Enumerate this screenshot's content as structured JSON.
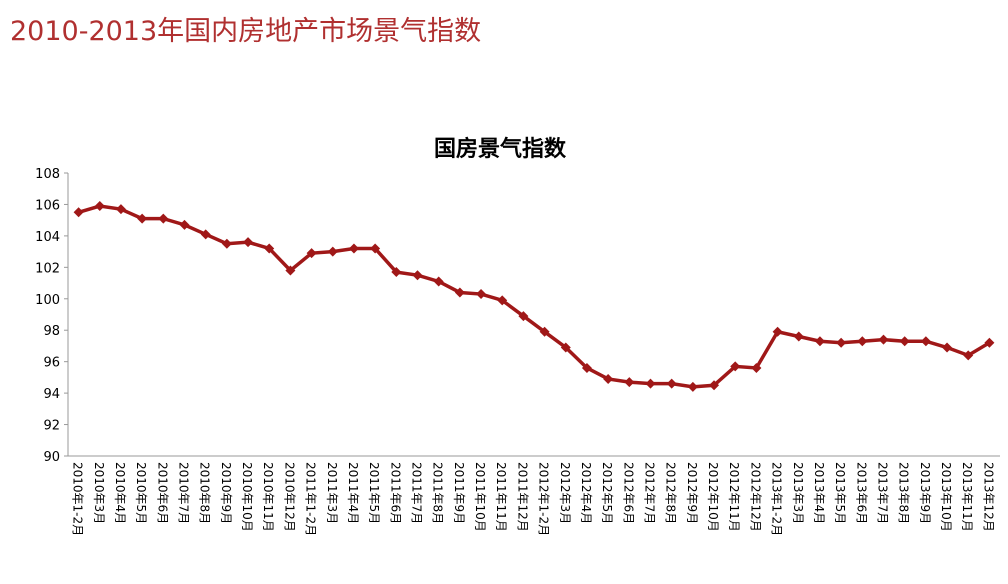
{
  "header": {
    "title": "2010-2013年国内房地产市场景气指数"
  },
  "chart_data": {
    "type": "line",
    "title": "国房景气指数",
    "categories": [
      "2010年1-2月",
      "2010年3月",
      "2010年4月",
      "2010年5月",
      "2010年6月",
      "2010年7月",
      "2010年8月",
      "2010年9月",
      "2010年10月",
      "2010年11月",
      "2010年12月",
      "2011年1-2月",
      "2011年3月",
      "2011年4月",
      "2011年5月",
      "2011年6月",
      "2011年7月",
      "2011年8月",
      "2011年9月",
      "2011年10月",
      "2011年11月",
      "2011年12月",
      "2012年1-2月",
      "2012年3月",
      "2012年4月",
      "2012年5月",
      "2012年6月",
      "2012年7月",
      "2012年8月",
      "2012年9月",
      "2012年10月",
      "2012年11月",
      "2012年12月",
      "2013年1-2月",
      "2013年3月",
      "2013年4月",
      "2013年5月",
      "2013年6月",
      "2013年7月",
      "2013年8月",
      "2013年9月",
      "2013年10月",
      "2013年11月",
      "2013年12月"
    ],
    "values": [
      105.5,
      105.9,
      105.7,
      105.1,
      105.1,
      104.7,
      104.1,
      103.5,
      103.6,
      103.2,
      101.8,
      102.9,
      103.0,
      103.2,
      103.2,
      101.7,
      101.5,
      101.1,
      100.4,
      100.3,
      99.9,
      98.9,
      97.9,
      96.9,
      95.6,
      94.9,
      94.7,
      94.6,
      94.6,
      94.4,
      94.5,
      95.7,
      95.6,
      97.9,
      97.6,
      97.3,
      97.2,
      97.3,
      97.4,
      97.3,
      97.3,
      96.9,
      96.4,
      97.2
    ],
    "color": "#a01818",
    "ylim": [
      90,
      108
    ],
    "yticks": [
      90,
      92,
      94,
      96,
      98,
      100,
      102,
      104,
      106,
      108
    ]
  }
}
